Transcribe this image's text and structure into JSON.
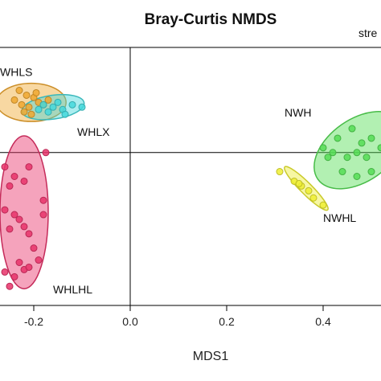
{
  "chart_data": {
    "type": "scatter",
    "title": "Bray-Curtis NMDS",
    "stress_label": "stre",
    "xlabel": "MDS1",
    "ylabel": "",
    "xlim": [
      -0.27,
      0.52
    ],
    "ylim": [
      -0.32,
      0.22
    ],
    "xticks": [
      {
        "value": -0.2,
        "label": "-0.2"
      },
      {
        "value": 0.0,
        "label": "0.0"
      },
      {
        "value": 0.2,
        "label": "0.2"
      },
      {
        "value": 0.4,
        "label": "0.4"
      }
    ],
    "reference_lines": {
      "x": 0,
      "y": 0
    },
    "groups": [
      {
        "name": "WHLS",
        "color": "#F0A830",
        "ellipse": {
          "cx": -0.205,
          "cy": 0.105,
          "rx": 0.072,
          "ry": 0.04,
          "angle": 0
        },
        "points": [
          [
            -0.23,
            0.13
          ],
          [
            -0.215,
            0.12
          ],
          [
            -0.2,
            0.115
          ],
          [
            -0.19,
            0.105
          ],
          [
            -0.225,
            0.1
          ],
          [
            -0.21,
            0.095
          ],
          [
            -0.24,
            0.11
          ],
          [
            -0.18,
            0.1
          ],
          [
            -0.195,
            0.125
          ],
          [
            -0.22,
            0.085
          ],
          [
            -0.17,
            0.11
          ],
          [
            -0.205,
            0.08
          ]
        ]
      },
      {
        "name": "WHLX",
        "color": "#44D8DC",
        "ellipse": {
          "cx": -0.16,
          "cy": 0.095,
          "rx": 0.065,
          "ry": 0.025,
          "angle": -8
        },
        "points": [
          [
            -0.18,
            0.1
          ],
          [
            -0.16,
            0.095
          ],
          [
            -0.14,
            0.09
          ],
          [
            -0.12,
            0.1
          ],
          [
            -0.1,
            0.095
          ],
          [
            -0.17,
            0.085
          ],
          [
            -0.15,
            0.105
          ],
          [
            -0.135,
            0.08
          ],
          [
            -0.19,
            0.09
          ]
        ]
      },
      {
        "name": "WHLHL",
        "color": "#E8336A",
        "ellipse": {
          "cx": -0.22,
          "cy": -0.125,
          "rx": 0.05,
          "ry": 0.16,
          "angle": 0
        },
        "points": [
          [
            -0.26,
            -0.03
          ],
          [
            -0.24,
            -0.05
          ],
          [
            -0.21,
            -0.03
          ],
          [
            -0.175,
            0.0
          ],
          [
            -0.25,
            -0.07
          ],
          [
            -0.22,
            -0.06
          ],
          [
            -0.26,
            -0.12
          ],
          [
            -0.24,
            -0.13
          ],
          [
            -0.23,
            -0.14
          ],
          [
            -0.22,
            -0.155
          ],
          [
            -0.25,
            -0.16
          ],
          [
            -0.21,
            -0.17
          ],
          [
            -0.18,
            -0.13
          ],
          [
            -0.2,
            -0.2
          ],
          [
            -0.26,
            -0.25
          ],
          [
            -0.23,
            -0.23
          ],
          [
            -0.24,
            -0.26
          ],
          [
            -0.22,
            -0.245
          ],
          [
            -0.21,
            -0.24
          ],
          [
            -0.19,
            -0.225
          ],
          [
            -0.25,
            -0.28
          ],
          [
            -0.18,
            -0.1
          ]
        ]
      },
      {
        "name": "NWH",
        "color": "#55DD55",
        "ellipse": {
          "cx": 0.475,
          "cy": 0.005,
          "rx": 0.105,
          "ry": 0.065,
          "angle": -35
        },
        "points": [
          [
            0.46,
            0.05
          ],
          [
            0.43,
            0.03
          ],
          [
            0.4,
            0.01
          ],
          [
            0.42,
            0.0
          ],
          [
            0.45,
            -0.01
          ],
          [
            0.48,
            0.02
          ],
          [
            0.5,
            0.03
          ],
          [
            0.47,
            0.0
          ],
          [
            0.44,
            -0.04
          ],
          [
            0.47,
            -0.05
          ],
          [
            0.5,
            -0.04
          ],
          [
            0.52,
            0.01
          ],
          [
            0.41,
            -0.01
          ],
          [
            0.49,
            -0.01
          ]
        ]
      },
      {
        "name": "NWHL",
        "color": "#EEEE33",
        "ellipse": {
          "cx": 0.365,
          "cy": -0.075,
          "rx": 0.063,
          "ry": 0.012,
          "angle": 45
        },
        "points": [
          [
            0.31,
            -0.04
          ],
          [
            0.34,
            -0.06
          ],
          [
            0.355,
            -0.07
          ],
          [
            0.37,
            -0.08
          ],
          [
            0.38,
            -0.095
          ],
          [
            0.4,
            -0.11
          ],
          [
            0.35,
            -0.065
          ]
        ]
      }
    ],
    "labels": [
      {
        "text": "WHLS",
        "x": -0.27,
        "y": 0.16,
        "anchor": "start"
      },
      {
        "text": "WHLX",
        "x": -0.11,
        "y": 0.035,
        "anchor": "start"
      },
      {
        "text": "WHLHL",
        "x": -0.16,
        "y": -0.295,
        "anchor": "start"
      },
      {
        "text": "NWH",
        "x": 0.32,
        "y": 0.075,
        "anchor": "start"
      },
      {
        "text": "NWHL",
        "x": 0.4,
        "y": -0.145,
        "anchor": "start"
      }
    ]
  }
}
